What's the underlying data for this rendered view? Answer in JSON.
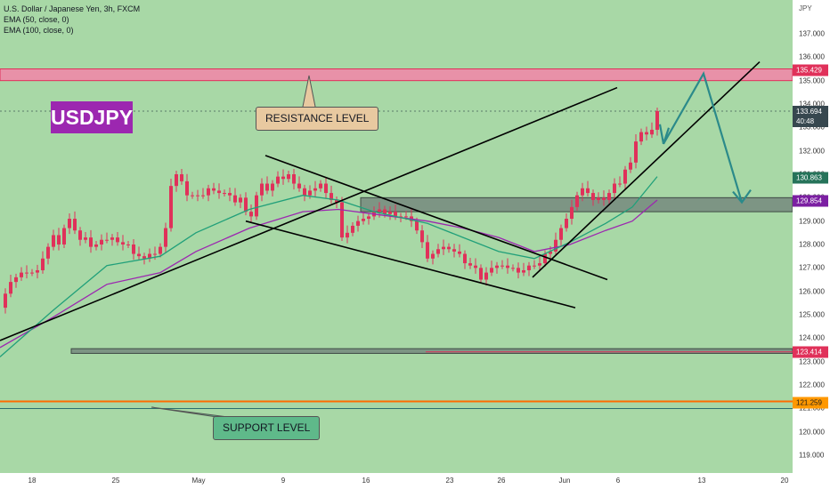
{
  "legend": {
    "title": "U.S. Dollar / Japanese Yen, 3h, FXCM",
    "ema50": "EMA (50, close, 0)",
    "ema100": "EMA (100, close, 0)"
  },
  "symbol_badge": "USDJPY",
  "annotations": {
    "resistance": "RESISTANCE LEVEL",
    "support": "SUPPORT LEVEL"
  },
  "price_axis": {
    "currency": "JPY",
    "ticks": [
      "137.000",
      "136.000",
      "135.000",
      "134.000",
      "133.000",
      "132.000",
      "131.000",
      "130.000",
      "129.000",
      "128.000",
      "127.000",
      "126.000",
      "125.000",
      "124.000",
      "123.000",
      "122.000",
      "121.000",
      "120.000",
      "119.000"
    ]
  },
  "date_axis": {
    "ticks": [
      "18",
      "25",
      "May",
      "9",
      "16",
      "23",
      "26",
      "Jun",
      "6",
      "13",
      "20"
    ]
  },
  "price_labels": {
    "resistance_top": "135.429",
    "last_price": "133.694",
    "countdown": "40:48",
    "ema50": "130.863",
    "ema100": "129.854",
    "line_123": "123.414",
    "support": "121.259"
  },
  "colors": {
    "background": "#a8d8a6",
    "resistance_zone": "#e891a8",
    "resistance_line": "#e0315a",
    "support_line": "#ff6d00",
    "gray_zone": "#6f7f78",
    "candle": "#e0315a",
    "ema50": "#21a07a",
    "ema100": "#9c27b0",
    "arrow": "#2b8a8a",
    "last_price_tag": "#37474f",
    "ema50_tag": "#26735a",
    "ema100_tag": "#7b1fa2",
    "line_123_tag": "#e0315a",
    "support_tag": "#ff9800"
  },
  "chart_data": {
    "type": "candlestick",
    "symbol": "USDJPY",
    "timeframe": "3h",
    "y_axis_range": [
      118.5,
      137.8
    ],
    "x_axis_labels": [
      "18",
      "25",
      "May",
      "9",
      "16",
      "23",
      "26",
      "Jun",
      "6",
      "13",
      "20"
    ],
    "close_trace": [
      [
        0,
        125.3
      ],
      [
        6,
        125.9
      ],
      [
        12,
        126.4
      ],
      [
        18,
        126.6
      ],
      [
        24,
        126.8
      ],
      [
        30,
        126.8
      ],
      [
        36,
        126.8
      ],
      [
        42,
        126.9
      ],
      [
        48,
        127.4
      ],
      [
        54,
        127.9
      ],
      [
        60,
        128.4
      ],
      [
        66,
        128.0
      ],
      [
        72,
        128.7
      ],
      [
        78,
        129.1
      ],
      [
        84,
        128.6
      ],
      [
        90,
        128.2
      ],
      [
        96,
        128.3
      ],
      [
        102,
        127.9
      ],
      [
        108,
        128.0
      ],
      [
        114,
        128.2
      ],
      [
        120,
        128.2
      ],
      [
        126,
        128.3
      ],
      [
        132,
        128.1
      ],
      [
        138,
        128.0
      ],
      [
        144,
        128.0
      ],
      [
        150,
        127.6
      ],
      [
        156,
        127.5
      ],
      [
        162,
        127.4
      ],
      [
        168,
        127.6
      ],
      [
        174,
        127.6
      ],
      [
        180,
        127.9
      ],
      [
        186,
        128.7
      ],
      [
        192,
        130.5
      ],
      [
        198,
        131.0
      ],
      [
        204,
        130.7
      ],
      [
        210,
        130.1
      ],
      [
        216,
        130.1
      ],
      [
        222,
        130.1
      ],
      [
        228,
        130.1
      ],
      [
        234,
        130.4
      ],
      [
        240,
        130.3
      ],
      [
        246,
        130.2
      ],
      [
        252,
        130.2
      ],
      [
        258,
        130.1
      ],
      [
        264,
        129.8
      ],
      [
        270,
        130.0
      ],
      [
        276,
        129.4
      ],
      [
        282,
        129.2
      ],
      [
        288,
        130.1
      ],
      [
        294,
        130.6
      ],
      [
        300,
        130.3
      ],
      [
        306,
        130.6
      ],
      [
        312,
        130.9
      ],
      [
        318,
        130.8
      ],
      [
        324,
        131.0
      ],
      [
        330,
        130.6
      ],
      [
        336,
        130.4
      ],
      [
        342,
        130.1
      ],
      [
        348,
        130.3
      ],
      [
        354,
        130.4
      ],
      [
        360,
        130.6
      ],
      [
        366,
        130.2
      ],
      [
        372,
        129.9
      ],
      [
        378,
        129.8
      ],
      [
        384,
        128.3
      ],
      [
        390,
        128.5
      ],
      [
        396,
        128.8
      ],
      [
        402,
        129.0
      ],
      [
        408,
        129.1
      ],
      [
        414,
        129.2
      ],
      [
        420,
        129.4
      ],
      [
        426,
        129.5
      ],
      [
        432,
        129.3
      ],
      [
        438,
        129.4
      ],
      [
        444,
        129.2
      ],
      [
        450,
        129.2
      ],
      [
        456,
        129.2
      ],
      [
        462,
        129.0
      ],
      [
        468,
        128.6
      ],
      [
        474,
        128.1
      ],
      [
        480,
        127.4
      ],
      [
        486,
        127.6
      ],
      [
        492,
        127.8
      ],
      [
        498,
        127.9
      ],
      [
        504,
        127.8
      ],
      [
        510,
        127.7
      ],
      [
        516,
        127.6
      ],
      [
        522,
        127.2
      ],
      [
        528,
        127.1
      ],
      [
        534,
        127.0
      ],
      [
        540,
        126.5
      ],
      [
        546,
        126.8
      ],
      [
        552,
        127.0
      ],
      [
        558,
        127.1
      ],
      [
        564,
        127.1
      ],
      [
        570,
        127.0
      ],
      [
        576,
        127.0
      ],
      [
        582,
        126.8
      ],
      [
        588,
        126.9
      ],
      [
        594,
        127.1
      ],
      [
        600,
        127.1
      ],
      [
        606,
        127.2
      ],
      [
        612,
        127.6
      ],
      [
        618,
        127.7
      ],
      [
        624,
        128.2
      ],
      [
        630,
        128.7
      ],
      [
        636,
        129.1
      ],
      [
        642,
        129.6
      ],
      [
        648,
        130.1
      ],
      [
        654,
        130.4
      ],
      [
        660,
        130.2
      ],
      [
        666,
        129.9
      ],
      [
        672,
        130.0
      ],
      [
        678,
        129.9
      ],
      [
        684,
        130.2
      ],
      [
        690,
        130.6
      ],
      [
        696,
        130.6
      ],
      [
        702,
        131.2
      ],
      [
        708,
        131.5
      ],
      [
        714,
        132.4
      ],
      [
        720,
        132.8
      ],
      [
        726,
        132.7
      ],
      [
        732,
        132.9
      ],
      [
        738,
        133.7
      ]
    ],
    "ema50_trace": [
      [
        0,
        123.2
      ],
      [
        60,
        125.2
      ],
      [
        120,
        127.1
      ],
      [
        180,
        127.5
      ],
      [
        220,
        128.5
      ],
      [
        280,
        129.5
      ],
      [
        340,
        130.1
      ],
      [
        380,
        129.9
      ],
      [
        420,
        129.4
      ],
      [
        480,
        128.9
      ],
      [
        520,
        128.3
      ],
      [
        560,
        127.7
      ],
      [
        600,
        127.4
      ],
      [
        640,
        128.1
      ],
      [
        680,
        128.9
      ],
      [
        710,
        129.6
      ],
      [
        738,
        130.9
      ]
    ],
    "ema100_trace": [
      [
        0,
        123.6
      ],
      [
        60,
        124.9
      ],
      [
        120,
        126.3
      ],
      [
        180,
        126.8
      ],
      [
        220,
        127.7
      ],
      [
        280,
        128.7
      ],
      [
        340,
        129.4
      ],
      [
        380,
        129.5
      ],
      [
        420,
        129.3
      ],
      [
        480,
        129.0
      ],
      [
        520,
        128.7
      ],
      [
        560,
        128.3
      ],
      [
        600,
        127.7
      ],
      [
        640,
        128.0
      ],
      [
        680,
        128.6
      ],
      [
        710,
        129.0
      ],
      [
        738,
        129.9
      ]
    ],
    "levels": {
      "resistance_zone": [
        135.0,
        135.5
      ],
      "ema50_last": 130.863,
      "ema100_last": 129.854,
      "level_123": 123.414,
      "support": 121.259,
      "last_price": 133.694
    },
    "trendlines": [
      [
        [
          0,
          123.9
        ],
        [
          693,
          134.7
        ]
      ],
      [
        [
          298,
          131.8
        ],
        [
          682,
          126.5
        ]
      ],
      [
        [
          276,
          129.0
        ],
        [
          646,
          125.3
        ]
      ],
      [
        [
          598,
          126.6
        ],
        [
          853,
          135.8
        ]
      ]
    ],
    "zones": [
      {
        "x": [
          405,
          890
        ],
        "y": [
          129.4,
          130.0
        ]
      },
      {
        "x": [
          80,
          890
        ],
        "y": [
          123.35,
          123.55
        ]
      }
    ],
    "projection_arrow": [
      [
        745,
        132.3
      ],
      [
        790,
        135.3
      ],
      [
        833,
        129.8
      ]
    ]
  }
}
